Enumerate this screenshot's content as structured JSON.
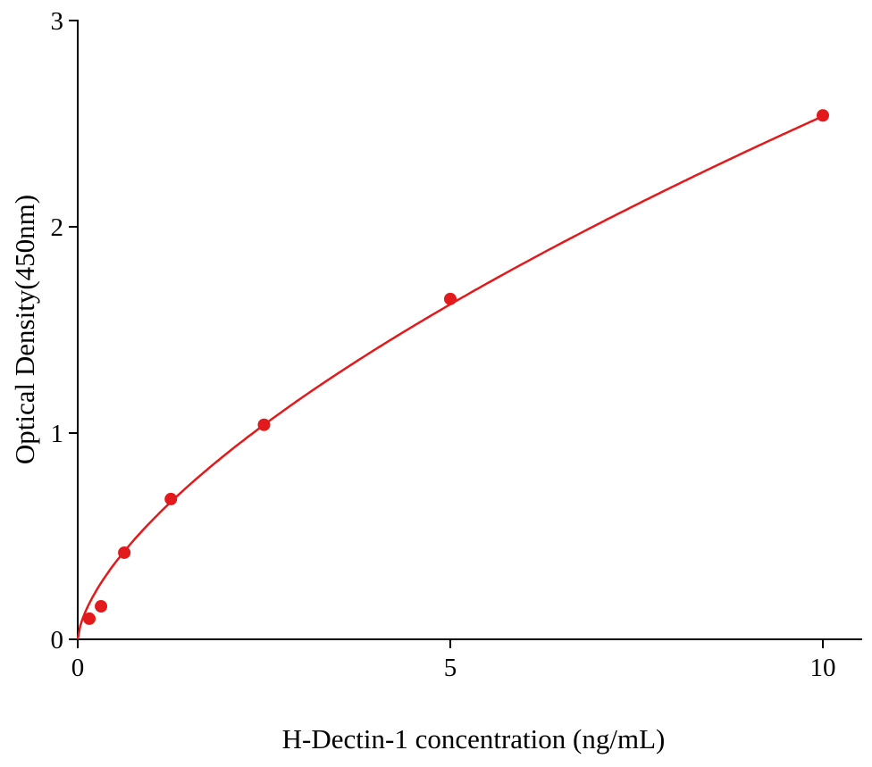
{
  "chart_data": {
    "type": "scatter",
    "title": "",
    "xlabel": "H-Dectin-1 concentration (ng/mL)",
    "ylabel": "Optical Density(450nm)",
    "xlim": [
      0,
      10
    ],
    "ylim": [
      0,
      3
    ],
    "x_ticks": [
      "0",
      "5",
      "10"
    ],
    "y_ticks": [
      "0",
      "1",
      "2",
      "3"
    ],
    "grid": false,
    "legend": "none",
    "color": "#e31a1c",
    "points": {
      "x": [
        0.156,
        0.3125,
        0.625,
        1.25,
        2.5,
        5,
        10
      ],
      "y": [
        0.1,
        0.16,
        0.42,
        0.68,
        1.04,
        1.65,
        2.54
      ]
    },
    "fit_curve": {
      "type": "power",
      "a": 0.577,
      "b": 0.643
    }
  }
}
